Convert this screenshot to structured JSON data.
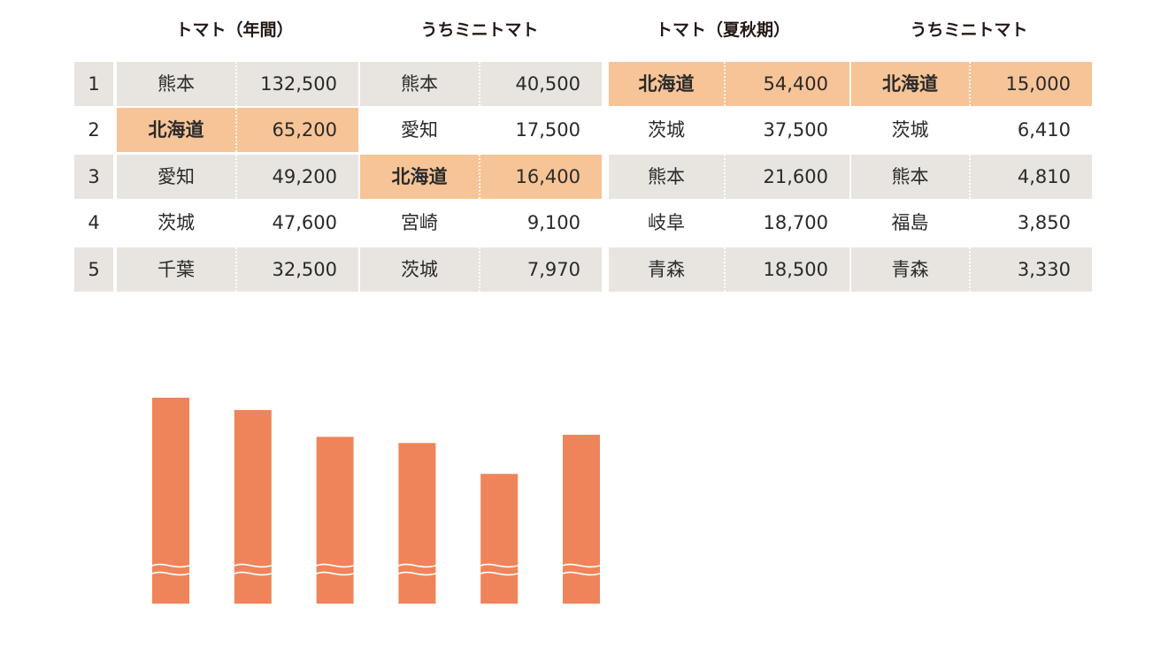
{
  "headers": [
    "トマト（年間）",
    "うちミニトマト",
    "トマト（夏秋期）",
    "うちミニトマト"
  ],
  "ranks": [
    "1",
    "2",
    "3",
    "4",
    "5"
  ],
  "tables": [
    {
      "rows": [
        {
          "pref": "熊本",
          "value": "132,500"
        },
        {
          "pref": "北海道",
          "value": "65,200",
          "highlight": true
        },
        {
          "pref": "愛知",
          "value": "49,200"
        },
        {
          "pref": "茨城",
          "value": "47,600"
        },
        {
          "pref": "千葉",
          "value": "32,500"
        }
      ]
    },
    {
      "rows": [
        {
          "pref": "熊本",
          "value": "40,500"
        },
        {
          "pref": "愛知",
          "value": "17,500"
        },
        {
          "pref": "北海道",
          "value": "16,400",
          "highlight": true
        },
        {
          "pref": "宮崎",
          "value": "9,100"
        },
        {
          "pref": "茨城",
          "value": "7,970"
        }
      ]
    },
    {
      "rows": [
        {
          "pref": "北海道",
          "value": "54,400",
          "highlight": true
        },
        {
          "pref": "茨城",
          "value": "37,500"
        },
        {
          "pref": "熊本",
          "value": "21,600"
        },
        {
          "pref": "岐阜",
          "value": "18,700"
        },
        {
          "pref": "青森",
          "value": "18,500"
        }
      ]
    },
    {
      "rows": [
        {
          "pref": "北海道",
          "value": "15,000",
          "highlight": true
        },
        {
          "pref": "茨城",
          "value": "6,410"
        },
        {
          "pref": "熊本",
          "value": "4,810"
        },
        {
          "pref": "福島",
          "value": "3,850"
        },
        {
          "pref": "青森",
          "value": "3,330"
        }
      ]
    }
  ],
  "colors": {
    "row_gray": "#e8e5e0",
    "highlight": "#f7c497",
    "bar": "#ef845a",
    "text": "#2a2a2a"
  },
  "chart_data": {
    "type": "bar",
    "categories": [
      "",
      "",
      "",
      "",
      "",
      ""
    ],
    "values": [
      1.0,
      0.94,
      0.81,
      0.78,
      0.63,
      0.82
    ],
    "value_unit": "fraction of tallest bar",
    "axis_break": true,
    "xlabel": "",
    "ylabel": ""
  }
}
